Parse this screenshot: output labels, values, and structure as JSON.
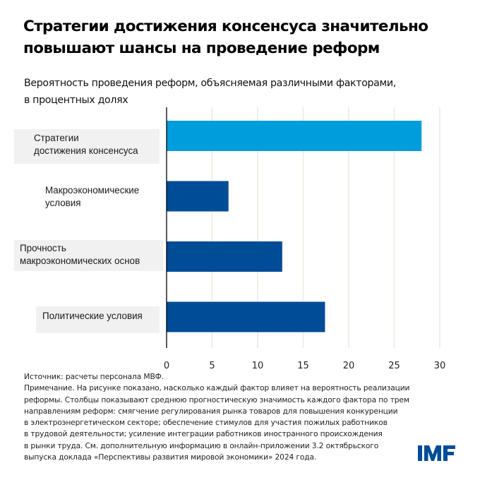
{
  "title_lines": [
    "Стратегии достижения консенсуса значительно",
    "повышают шансы на проведение реформ"
  ],
  "subtitle_lines": [
    "Вероятность проведения реформ, объясняемая различными факторами,",
    "в процентных долях"
  ],
  "chart_data": {
    "type": "bar",
    "orientation": "horizontal",
    "title": "Стратегии достижения консенсуса значительно повышают шансы на проведение реформ",
    "subtitle": "Вероятность проведения реформ, объясняемая различными факторами, в процентных долях",
    "categories": [
      [
        "Стратегии",
        "достижения консенсуса"
      ],
      [
        "Макроэкономические",
        "условия"
      ],
      [
        "Прочность",
        "макроэкономических основ"
      ],
      [
        "Политические условия"
      ]
    ],
    "values": [
      28.0,
      6.8,
      12.7,
      17.4
    ],
    "bar_colors": [
      "#009ddd",
      "#004c97",
      "#004c97",
      "#004c97"
    ],
    "label_highlight": [
      true,
      false,
      true,
      true
    ],
    "xlim": [
      0,
      30
    ],
    "xticks": [
      "0",
      "5",
      "10",
      "15",
      "20",
      "25",
      "30"
    ],
    "xtick_values": [
      0,
      5,
      10,
      15,
      20,
      25,
      30
    ],
    "grid": "vertical",
    "xlabel": "",
    "ylabel": ""
  },
  "notes_lines": [
    "Источник: расчеты персонала МВФ.",
    "Примечание. На рисунке показано, насколько каждый фактор влияет на вероятность реализации",
    "реформы. Столбцы показывают среднюю прогностическую значимость каждого фактора по трем",
    "направлениям реформ: смягчение регулирования рынка товаров для повышения конкуренции",
    "в электроэнергетическом секторе; обеспечение стимулов для участия пожилых работников",
    "в трудовой деятельности; усиление интеграции работников иностранного происхождения",
    "в рынки труда. См. дополнительную информацию в онлайн-приложении 3.2 октябрьского",
    "выпуска доклада «Перспективы развития мировой экономики» 2024 года."
  ],
  "logo": {
    "text": "IMF",
    "color": "#004c97"
  },
  "colors": {
    "grid": "#ece9e0",
    "label_bg": "#f1f1f1",
    "axis": "#000000"
  }
}
